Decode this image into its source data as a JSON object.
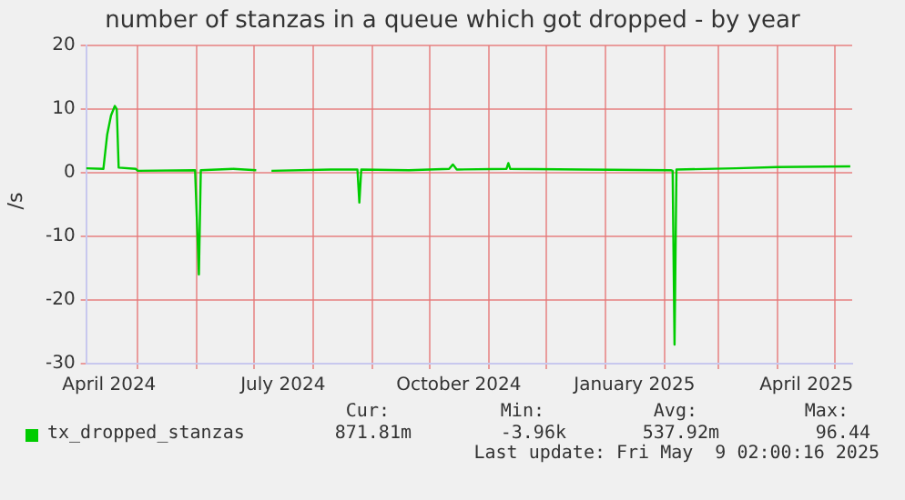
{
  "chart_data": {
    "type": "line",
    "title": "number of stanzas in a queue which got dropped - by year",
    "ylabel": "/s",
    "x": [
      "2024-04-04",
      "2024-04-13",
      "2024-04-15",
      "2024-04-17",
      "2024-04-19",
      "2024-04-20",
      "2024-04-21",
      "2024-04-30",
      "2024-05-01",
      "2024-05-31",
      "2024-06-02",
      "2024-06-03",
      "2024-06-20",
      "2024-07-02",
      "2024-07-03",
      "2024-07-10",
      "2024-08-10",
      "2024-08-24",
      "2024-08-25",
      "2024-08-26",
      "2024-09-20",
      "2024-10-11",
      "2024-10-13",
      "2024-10-15",
      "2024-11-10",
      "2024-11-11",
      "2024-11-12",
      "2024-12-20",
      "2025-02-04",
      "2025-02-05",
      "2025-02-06",
      "2025-02-07",
      "2025-03-10",
      "2025-04-01",
      "2025-05-09"
    ],
    "series": [
      {
        "name": "tx_dropped_stanzas",
        "color": "#00cc00",
        "values": [
          0.7,
          0.6,
          6,
          9,
          10.5,
          10,
          0.8,
          0.6,
          0.3,
          0.4,
          -16,
          0.4,
          0.6,
          0.4,
          null,
          0.3,
          0.5,
          0.5,
          -4.7,
          0.5,
          0.4,
          0.6,
          1.3,
          0.5,
          0.6,
          1.5,
          0.6,
          0.5,
          0.4,
          0.3,
          -27,
          0.5,
          0.7,
          0.9,
          1.0
        ]
      }
    ],
    "xlim": [
      "2024-04-04",
      "2025-05-10"
    ],
    "xticks": [
      {
        "value": "2024-04-16",
        "label": "April 2024"
      },
      {
        "value": "2024-05-01",
        "label": null
      },
      {
        "value": "2024-06-01",
        "label": null
      },
      {
        "value": "2024-07-01",
        "label": null
      },
      {
        "value": "2024-07-16",
        "label": "July 2024"
      },
      {
        "value": "2024-08-01",
        "label": null
      },
      {
        "value": "2024-09-01",
        "label": null
      },
      {
        "value": "2024-10-01",
        "label": null
      },
      {
        "value": "2024-10-16",
        "label": "October 2024"
      },
      {
        "value": "2024-11-01",
        "label": null
      },
      {
        "value": "2024-12-01",
        "label": null
      },
      {
        "value": "2025-01-01",
        "label": null
      },
      {
        "value": "2025-01-16",
        "label": "January 2025"
      },
      {
        "value": "2025-02-01",
        "label": null
      },
      {
        "value": "2025-03-01",
        "label": null
      },
      {
        "value": "2025-04-01",
        "label": null
      },
      {
        "value": "2025-04-16",
        "label": "April 2025"
      },
      {
        "value": "2025-05-01",
        "label": null
      }
    ],
    "ylim": [
      -30,
      20
    ],
    "yticks": [
      -30,
      -20,
      -10,
      0,
      10,
      20
    ],
    "grid": true,
    "legend": "bottom",
    "marker": "none",
    "line_style": "solid",
    "annotations": [
      "Cur:",
      "Min:",
      "Avg:",
      "Max:",
      "871.81m",
      "-3.96k",
      "537.92m",
      "96.44",
      "Last update: Fri May  9 02:00:16 2025"
    ]
  }
}
